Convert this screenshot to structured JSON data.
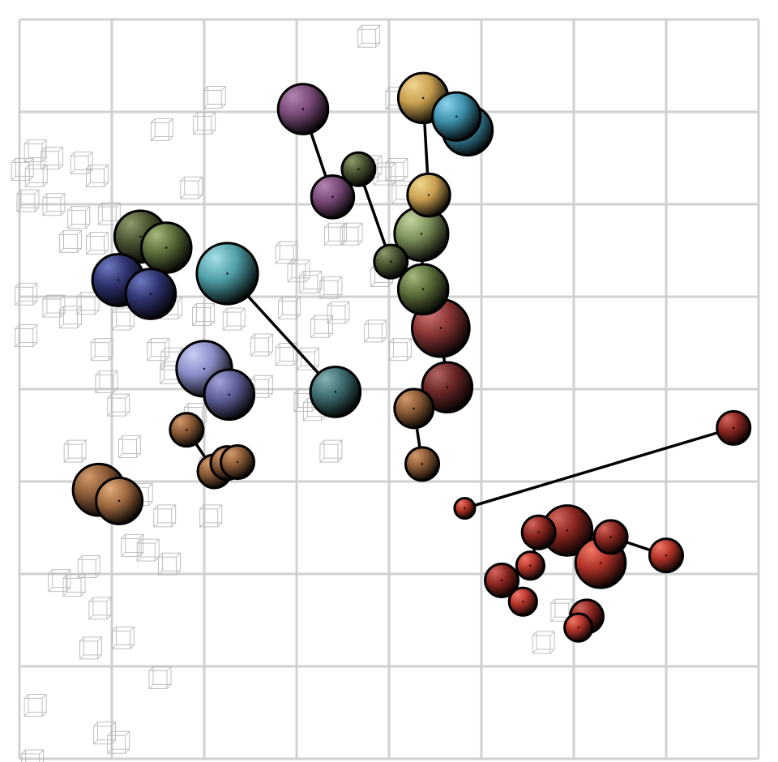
{
  "chart_data": {
    "type": "scatter",
    "title": "",
    "xlabel": "",
    "ylabel": "",
    "grid": true,
    "legend": "none",
    "xlim": [
      0,
      8
    ],
    "ylim": [
      0,
      8
    ],
    "styles": {
      "plum": {
        "base": "#7a4a78",
        "hi": "#b585b0"
      },
      "gold": {
        "base": "#c9a050",
        "hi": "#f2d590"
      },
      "teal": {
        "base": "#3d91ad",
        "hi": "#8dd3ea"
      },
      "olive": {
        "base": "#5b6e3a",
        "hi": "#a7ba7c"
      },
      "olived": {
        "base": "#4a5532",
        "hi": "#8f9c6a"
      },
      "sage": {
        "base": "#7b905a",
        "hi": "#c4d5a0"
      },
      "navy": {
        "base": "#2e3470",
        "hi": "#6f79c0"
      },
      "slate": {
        "base": "#5e5e98",
        "hi": "#a3a5d8"
      },
      "lilac": {
        "base": "#8a8ec8",
        "hi": "#c9cdf5"
      },
      "cyan": {
        "base": "#4fa0a8",
        "hi": "#a6e1e6"
      },
      "dteal": {
        "base": "#3d6c70",
        "hi": "#87b3b6"
      },
      "maroon": {
        "base": "#8a3535",
        "hi": "#d27878"
      },
      "wine": {
        "base": "#6a2626",
        "hi": "#b46565"
      },
      "brown": {
        "base": "#8a5a36",
        "hi": "#d39a6c"
      },
      "tan": {
        "base": "#a06a40",
        "hi": "#e2ad7f"
      },
      "red": {
        "base": "#b23328",
        "hi": "#f07868"
      },
      "dred": {
        "base": "#8c2620",
        "hi": "#d4685f"
      }
    },
    "points": [
      {
        "x": 3.07,
        "y": 7.03,
        "r": 0.27,
        "style": "plum"
      },
      {
        "x": 3.39,
        "y": 6.08,
        "r": 0.23,
        "style": "plum"
      },
      {
        "x": 3.67,
        "y": 6.38,
        "r": 0.18,
        "style": "olived"
      },
      {
        "x": 4.02,
        "y": 5.38,
        "r": 0.18,
        "style": "olived"
      },
      {
        "x": 4.37,
        "y": 7.15,
        "r": 0.27,
        "style": "gold"
      },
      {
        "x": 4.43,
        "y": 6.1,
        "r": 0.23,
        "style": "gold"
      },
      {
        "x": 4.85,
        "y": 6.8,
        "r": 0.27,
        "style": "teal"
      },
      {
        "x": 4.73,
        "y": 6.95,
        "r": 0.26,
        "style": "teal"
      },
      {
        "x": 4.35,
        "y": 5.68,
        "r": 0.29,
        "style": "sage"
      },
      {
        "x": 4.37,
        "y": 5.08,
        "r": 0.27,
        "style": "olive"
      },
      {
        "x": 1.31,
        "y": 5.65,
        "r": 0.28,
        "style": "olived"
      },
      {
        "x": 1.59,
        "y": 5.53,
        "r": 0.27,
        "style": "olive"
      },
      {
        "x": 1.07,
        "y": 5.18,
        "r": 0.28,
        "style": "navy"
      },
      {
        "x": 1.42,
        "y": 5.03,
        "r": 0.27,
        "style": "navy"
      },
      {
        "x": 2.25,
        "y": 5.25,
        "r": 0.33,
        "style": "cyan"
      },
      {
        "x": 3.42,
        "y": 3.97,
        "r": 0.27,
        "style": "dteal"
      },
      {
        "x": 2.0,
        "y": 4.22,
        "r": 0.3,
        "style": "lilac"
      },
      {
        "x": 2.27,
        "y": 3.94,
        "r": 0.27,
        "style": "slate"
      },
      {
        "x": 4.56,
        "y": 4.66,
        "r": 0.31,
        "style": "maroon"
      },
      {
        "x": 4.63,
        "y": 4.02,
        "r": 0.27,
        "style": "wine"
      },
      {
        "x": 4.27,
        "y": 3.79,
        "r": 0.21,
        "style": "brown"
      },
      {
        "x": 4.36,
        "y": 3.19,
        "r": 0.18,
        "style": "brown"
      },
      {
        "x": 1.81,
        "y": 3.56,
        "r": 0.18,
        "style": "brown"
      },
      {
        "x": 2.11,
        "y": 3.11,
        "r": 0.18,
        "style": "brown"
      },
      {
        "x": 2.25,
        "y": 3.2,
        "r": 0.18,
        "style": "brown"
      },
      {
        "x": 2.36,
        "y": 3.21,
        "r": 0.18,
        "style": "brown"
      },
      {
        "x": 0.86,
        "y": 2.91,
        "r": 0.28,
        "style": "brown"
      },
      {
        "x": 1.08,
        "y": 2.79,
        "r": 0.25,
        "style": "tan"
      },
      {
        "x": 7.73,
        "y": 3.58,
        "r": 0.18,
        "style": "dred"
      },
      {
        "x": 4.82,
        "y": 2.71,
        "r": 0.11,
        "style": "red"
      },
      {
        "x": 5.93,
        "y": 2.47,
        "r": 0.27,
        "style": "dred"
      },
      {
        "x": 5.62,
        "y": 2.45,
        "r": 0.18,
        "style": "dred"
      },
      {
        "x": 6.4,
        "y": 2.4,
        "r": 0.18,
        "style": "dred"
      },
      {
        "x": 7.0,
        "y": 2.2,
        "r": 0.18,
        "style": "red"
      },
      {
        "x": 6.29,
        "y": 2.12,
        "r": 0.27,
        "style": "red"
      },
      {
        "x": 5.53,
        "y": 2.09,
        "r": 0.15,
        "style": "red"
      },
      {
        "x": 5.22,
        "y": 1.93,
        "r": 0.18,
        "style": "dred"
      },
      {
        "x": 5.45,
        "y": 1.7,
        "r": 0.15,
        "style": "red"
      },
      {
        "x": 6.14,
        "y": 1.54,
        "r": 0.18,
        "style": "dred"
      },
      {
        "x": 6.05,
        "y": 1.42,
        "r": 0.15,
        "style": "red"
      }
    ],
    "links": [
      [
        0,
        1
      ],
      [
        2,
        3
      ],
      [
        4,
        5
      ],
      [
        6,
        7
      ],
      [
        8,
        9
      ],
      [
        10,
        11
      ],
      [
        12,
        13
      ],
      [
        14,
        15
      ],
      [
        16,
        17
      ],
      [
        18,
        19
      ],
      [
        20,
        21
      ],
      [
        22,
        23
      ],
      [
        24,
        25
      ],
      [
        26,
        27
      ],
      [
        28,
        29
      ],
      [
        30,
        31
      ],
      [
        30,
        32
      ],
      [
        32,
        33
      ],
      [
        30,
        34
      ],
      [
        31,
        35
      ],
      [
        35,
        36
      ],
      [
        36,
        37
      ],
      [
        38,
        39
      ]
    ],
    "background_cubes": [
      [
        3.76,
        7.84
      ],
      [
        2.09,
        7.18
      ],
      [
        4.06,
        7.17
      ],
      [
        1.98,
        6.9
      ],
      [
        1.52,
        6.83
      ],
      [
        0.15,
        6.6
      ],
      [
        0.33,
        6.52
      ],
      [
        0.01,
        6.4
      ],
      [
        0.16,
        6.33
      ],
      [
        0.65,
        6.47
      ],
      [
        0.82,
        6.33
      ],
      [
        0.07,
        6.06
      ],
      [
        0.35,
        6.02
      ],
      [
        1.84,
        6.2
      ],
      [
        3.78,
        6.43
      ],
      [
        3.93,
        6.35
      ],
      [
        4.06,
        6.4
      ],
      [
        4.13,
        6.15
      ],
      [
        0.62,
        5.88
      ],
      [
        0.95,
        5.92
      ],
      [
        0.53,
        5.62
      ],
      [
        0.82,
        5.6
      ],
      [
        3.4,
        5.7
      ],
      [
        3.57,
        5.7
      ],
      [
        2.87,
        5.5
      ],
      [
        3.0,
        5.3
      ],
      [
        3.13,
        5.18
      ],
      [
        3.35,
        5.12
      ],
      [
        3.9,
        5.25
      ],
      [
        0.05,
        5.05
      ],
      [
        0.35,
        4.92
      ],
      [
        0.53,
        4.8
      ],
      [
        0.72,
        4.95
      ],
      [
        1.1,
        4.78
      ],
      [
        1.62,
        4.9
      ],
      [
        1.97,
        4.83
      ],
      [
        2.3,
        4.78
      ],
      [
        2.9,
        4.9
      ],
      [
        3.25,
        4.7
      ],
      [
        3.43,
        4.85
      ],
      [
        0.05,
        4.6
      ],
      [
        0.87,
        4.45
      ],
      [
        1.48,
        4.45
      ],
      [
        1.63,
        4.35
      ],
      [
        2.6,
        4.5
      ],
      [
        2.87,
        4.4
      ],
      [
        3.1,
        4.35
      ],
      [
        3.83,
        4.65
      ],
      [
        4.1,
        4.45
      ],
      [
        0.92,
        4.1
      ],
      [
        1.62,
        4.2
      ],
      [
        2.15,
        4.15
      ],
      [
        2.6,
        4.05
      ],
      [
        3.07,
        3.9
      ],
      [
        3.17,
        3.8
      ],
      [
        1.05,
        3.85
      ],
      [
        1.88,
        3.75
      ],
      [
        3.35,
        3.35
      ],
      [
        0.58,
        3.35
      ],
      [
        1.17,
        3.4
      ],
      [
        2.05,
        3.2
      ],
      [
        1.3,
        2.88
      ],
      [
        1.55,
        2.65
      ],
      [
        2.05,
        2.65
      ],
      [
        1.2,
        2.33
      ],
      [
        1.37,
        2.28
      ],
      [
        1.6,
        2.13
      ],
      [
        0.73,
        2.1
      ],
      [
        0.41,
        1.95
      ],
      [
        0.57,
        1.9
      ],
      [
        0.85,
        1.65
      ],
      [
        1.1,
        1.33
      ],
      [
        0.75,
        1.22
      ],
      [
        1.5,
        0.9
      ],
      [
        0.15,
        0.6
      ],
      [
        0.9,
        0.3
      ],
      [
        1.05,
        0.2
      ],
      [
        0.12,
        0.0
      ],
      [
        5.85,
        1.63
      ],
      [
        5.65,
        1.28
      ]
    ]
  }
}
